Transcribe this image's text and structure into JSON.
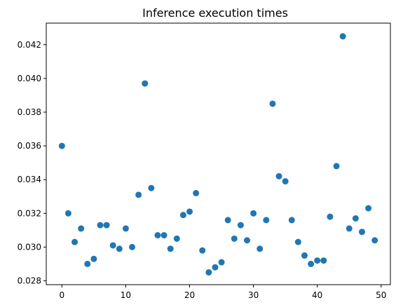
{
  "chart_data": {
    "type": "scatter",
    "title": "Inference execution times",
    "xlabel": "",
    "ylabel": "",
    "xlim": [
      -2.45,
      51.45
    ],
    "ylim": [
      0.02777,
      0.04328
    ],
    "xticks": [
      0,
      10,
      20,
      30,
      40,
      50
    ],
    "yticks": [
      0.028,
      0.03,
      0.032,
      0.034,
      0.036,
      0.038,
      0.04,
      0.042
    ],
    "grid": false,
    "marker_color": "#1f77b4",
    "x": [
      0,
      1,
      2,
      3,
      4,
      5,
      6,
      7,
      8,
      9,
      10,
      11,
      12,
      13,
      14,
      15,
      16,
      17,
      18,
      19,
      20,
      21,
      22,
      23,
      24,
      25,
      26,
      27,
      28,
      29,
      30,
      31,
      32,
      33,
      34,
      35,
      36,
      37,
      38,
      39,
      40,
      41,
      42,
      43,
      44,
      45,
      46,
      47,
      48,
      49
    ],
    "y": [
      0.036,
      0.032,
      0.0303,
      0.0311,
      0.029,
      0.0293,
      0.0313,
      0.0313,
      0.0301,
      0.0299,
      0.0311,
      0.03,
      0.0331,
      0.0397,
      0.0335,
      0.0307,
      0.0307,
      0.0299,
      0.0305,
      0.0319,
      0.0321,
      0.0332,
      0.0298,
      0.0285,
      0.0288,
      0.0291,
      0.0316,
      0.0305,
      0.0313,
      0.0304,
      0.032,
      0.0299,
      0.0316,
      0.0385,
      0.0342,
      0.0339,
      0.0316,
      0.0303,
      0.0295,
      0.029,
      0.0292,
      0.0292,
      0.0318,
      0.0348,
      0.0425,
      0.0311,
      0.0317,
      0.0309,
      0.0323,
      0.0304
    ]
  }
}
